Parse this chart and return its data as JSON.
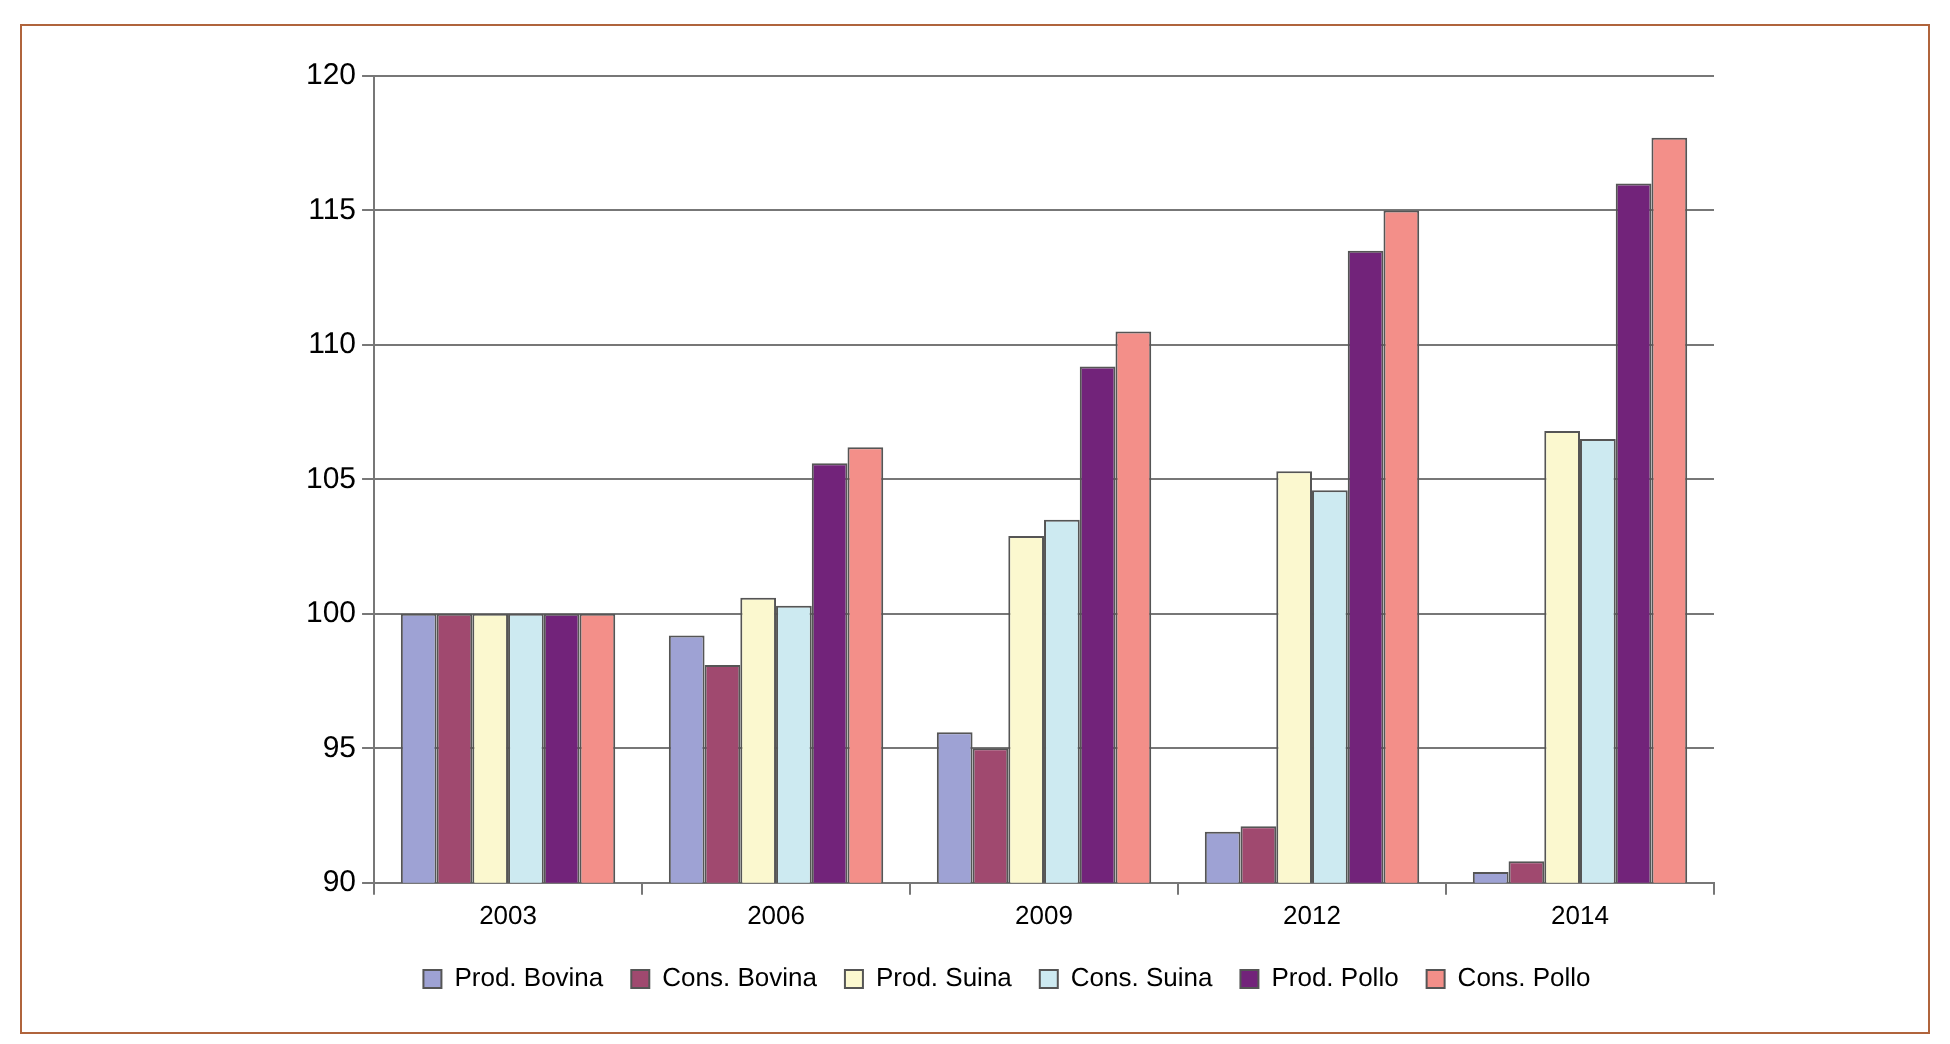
{
  "chart_data": {
    "type": "bar",
    "categories": [
      "2003",
      "2006",
      "2009",
      "2012",
      "2014"
    ],
    "series": [
      {
        "name": "Prod. Bovina",
        "color": "#9ea2d4",
        "values": [
          100,
          99.2,
          95.6,
          91.9,
          90.4
        ]
      },
      {
        "name": "Cons. Bovina",
        "color": "#a0496f",
        "values": [
          100,
          98.1,
          95.0,
          92.1,
          90.8
        ]
      },
      {
        "name": "Prod. Suina",
        "color": "#fbf8cf",
        "values": [
          100,
          100.6,
          102.9,
          105.3,
          106.8
        ]
      },
      {
        "name": "Cons. Suina",
        "color": "#cdeaf1",
        "values": [
          100,
          100.3,
          103.5,
          104.6,
          106.5
        ]
      },
      {
        "name": "Prod. Pollo",
        "color": "#72237a",
        "values": [
          100,
          105.6,
          109.2,
          113.5,
          116.0
        ]
      },
      {
        "name": "Cons. Pollo",
        "color": "#f38f89",
        "values": [
          100,
          106.2,
          110.5,
          115.0,
          117.7
        ]
      }
    ],
    "ylim": [
      90,
      120
    ],
    "yticks": [
      90,
      95,
      100,
      105,
      110,
      115,
      120
    ],
    "grid": "y",
    "legend": "bottom"
  }
}
